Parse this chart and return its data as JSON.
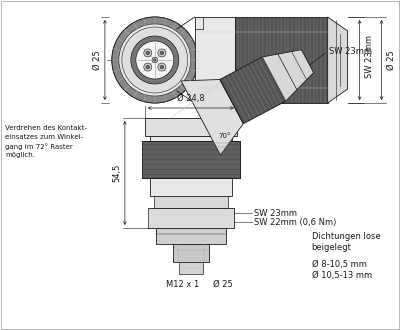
{
  "bg_color": "#ffffff",
  "line_color": "#1a1a1a",
  "annotations": {
    "dia_25_top": "Ø 25",
    "sw_23mm_top": "SW 23mm",
    "dia_25_top_right": "Ø 25",
    "dia_248": "Ø 24,8",
    "angle_70": "70°",
    "sw_23mm_side": "SW 23mm",
    "dim_545": "54,5",
    "sw_23mm_bot": "SW 23mm",
    "sw_22mm_bot": "SW 22mm (0,6 Nm)",
    "m12x1": "M12 x 1",
    "dia_25_bot": "Ø 25",
    "left_text_1": "Verdrehen des Kontakt-",
    "left_text_2": "einsatzes zum Winkel-",
    "left_text_3": "gang im 72° Raster",
    "left_text_4": "möglich.",
    "right_text_1": "Dichtungen lose",
    "right_text_2": "beigelegt",
    "right_text_3": "Ø 8-10,5 mm",
    "right_text_4": "Ø 10,5-13 mm"
  },
  "font_size": 6.0,
  "font_size_small": 5.0
}
